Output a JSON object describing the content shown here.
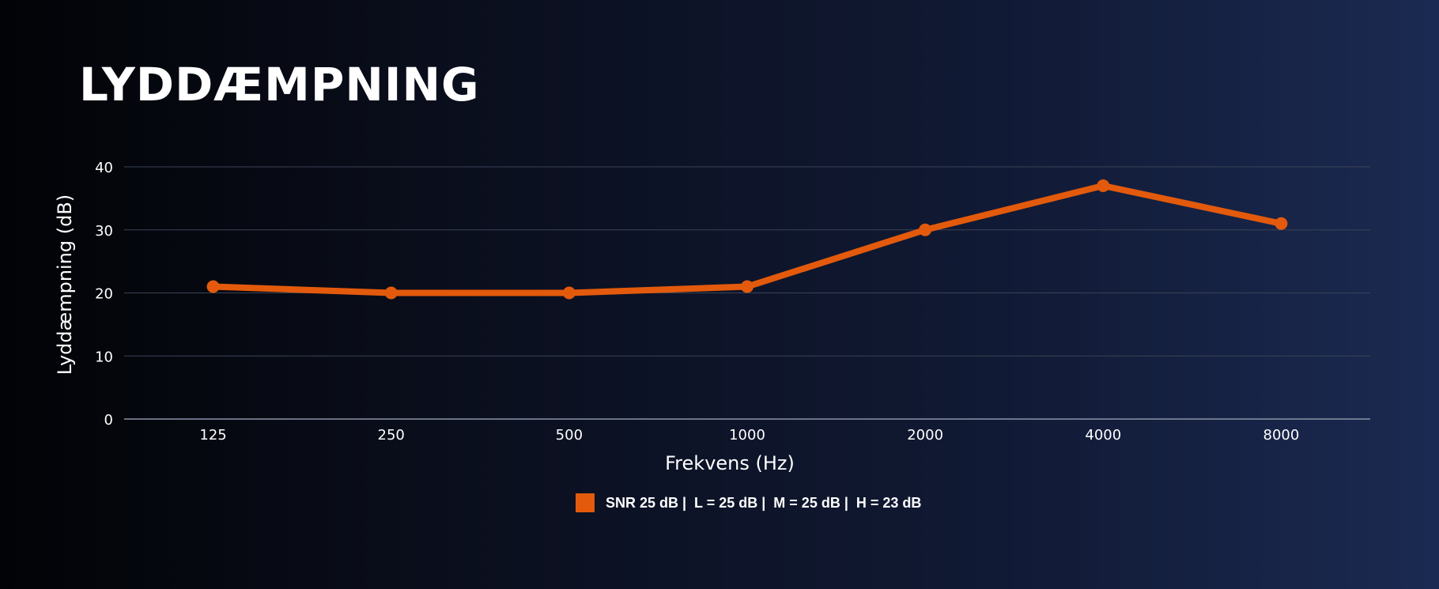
{
  "title": "LYDDÆMPNING",
  "colors": {
    "series": "#e35a0c",
    "grid": "#3a4255",
    "axis": "#8a93a8"
  },
  "chart_data": {
    "type": "line",
    "categories": [
      "125",
      "250",
      "500",
      "1000",
      "2000",
      "4000",
      "8000"
    ],
    "series": [
      {
        "name": "SNR 25 dB |  L = 25 dB |  M = 25 dB |  H = 23 dB",
        "values": [
          21,
          20,
          20,
          21,
          30,
          37,
          31
        ]
      }
    ],
    "xlabel": "Frekvens (Hz)",
    "ylabel": "Lyddæmpning (dB)",
    "ylim": [
      0,
      40
    ],
    "yticks": [
      "0",
      "10",
      "20",
      "30",
      "40"
    ],
    "grid": true,
    "legend": "bottom"
  }
}
